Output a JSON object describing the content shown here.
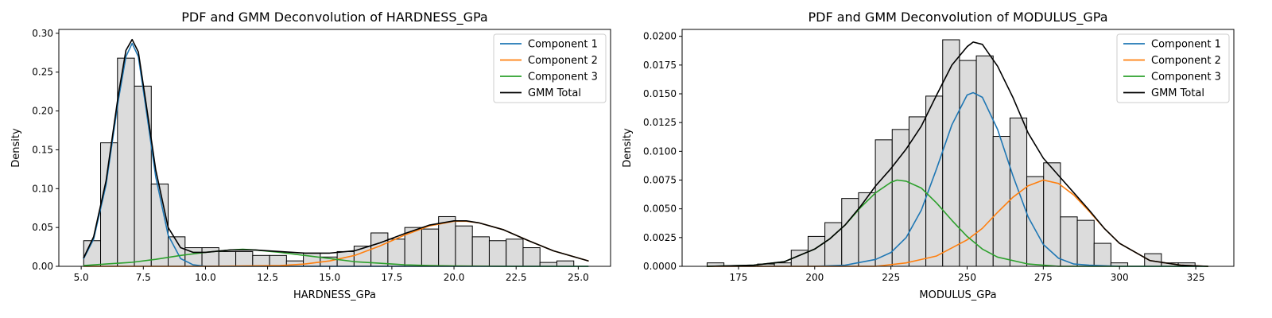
{
  "colors": {
    "component_1": "#1f77b4",
    "component_2": "#ff7f0e",
    "component_3": "#2ca02c",
    "gmm_total": "#000000",
    "hist_fill": "#dcdcdc",
    "hist_edge": "#000000"
  },
  "chart_data": [
    {
      "type": "histogram+line",
      "title": "PDF and GMM Deconvolution of HARDNESS_GPa",
      "xlabel": "HARDNESS_GPa",
      "ylabel": "Density",
      "xlim": [
        4.1,
        26.3
      ],
      "ylim": [
        0,
        0.305
      ],
      "xticks": [
        5.0,
        7.5,
        10.0,
        12.5,
        15.0,
        17.5,
        20.0,
        22.5,
        25.0
      ],
      "xtick_labels": [
        "5.0",
        "7.5",
        "10.0",
        "12.5",
        "15.0",
        "17.5",
        "20.0",
        "22.5",
        "25.0"
      ],
      "yticks": [
        0.0,
        0.05,
        0.1,
        0.15,
        0.2,
        0.25,
        0.3
      ],
      "ytick_labels": [
        "0.00",
        "0.05",
        "0.10",
        "0.15",
        "0.20",
        "0.25",
        "0.30"
      ],
      "legend_position": "top-right",
      "grid": false,
      "histogram": {
        "bin_start": 5.1,
        "bin_width": 0.68,
        "densities": [
          0.033,
          0.159,
          0.268,
          0.232,
          0.106,
          0.038,
          0.024,
          0.024,
          0.019,
          0.019,
          0.014,
          0.014,
          0.007,
          0.017,
          0.012,
          0.019,
          0.026,
          0.043,
          0.035,
          0.05,
          0.048,
          0.064,
          0.052,
          0.038,
          0.033,
          0.035,
          0.024,
          0.005,
          0.007
        ]
      },
      "series": [
        {
          "name": "Component 1",
          "color_key": "component_1",
          "x": [
            5.1,
            5.5,
            6.0,
            6.5,
            6.8,
            7.05,
            7.3,
            7.6,
            8.0,
            8.5,
            9.0,
            9.5,
            10.0,
            10.5,
            11.0,
            12.0,
            15.0,
            20.0,
            25.4
          ],
          "y": [
            0.01,
            0.035,
            0.105,
            0.215,
            0.27,
            0.287,
            0.27,
            0.205,
            0.115,
            0.04,
            0.01,
            0.002,
            0.0,
            0.0,
            0.0,
            0.0,
            0.0,
            0.0,
            0.0
          ]
        },
        {
          "name": "Component 2",
          "color_key": "component_2",
          "x": [
            5.1,
            10.0,
            13.0,
            14.0,
            15.0,
            16.0,
            17.0,
            18.0,
            19.0,
            20.0,
            20.5,
            21.0,
            22.0,
            23.0,
            24.0,
            25.4
          ],
          "y": [
            0.0,
            0.0,
            0.001,
            0.003,
            0.007,
            0.014,
            0.026,
            0.04,
            0.052,
            0.058,
            0.058,
            0.056,
            0.047,
            0.033,
            0.02,
            0.007
          ]
        },
        {
          "name": "Component 3",
          "color_key": "component_3",
          "x": [
            5.1,
            6.0,
            7.0,
            8.0,
            9.0,
            10.0,
            11.0,
            11.5,
            12.0,
            13.0,
            14.0,
            15.0,
            16.0,
            17.0,
            18.0,
            19.0,
            20.0,
            22.0,
            25.4
          ],
          "y": [
            0.001,
            0.003,
            0.005,
            0.009,
            0.014,
            0.018,
            0.021,
            0.022,
            0.021,
            0.018,
            0.014,
            0.01,
            0.006,
            0.004,
            0.002,
            0.001,
            0.0005,
            0.0,
            0.0
          ]
        },
        {
          "name": "GMM Total",
          "color_key": "gmm_total",
          "x": [
            5.1,
            5.5,
            6.0,
            6.5,
            6.8,
            7.05,
            7.3,
            7.6,
            8.0,
            8.5,
            9.0,
            9.5,
            10.0,
            11.0,
            12.0,
            13.0,
            14.0,
            15.0,
            16.0,
            17.0,
            18.0,
            19.0,
            20.0,
            20.5,
            21.0,
            22.0,
            23.0,
            24.0,
            25.4
          ],
          "y": [
            0.011,
            0.038,
            0.11,
            0.222,
            0.278,
            0.292,
            0.276,
            0.212,
            0.124,
            0.05,
            0.024,
            0.018,
            0.018,
            0.021,
            0.021,
            0.019,
            0.017,
            0.017,
            0.02,
            0.03,
            0.042,
            0.053,
            0.0585,
            0.0585,
            0.056,
            0.047,
            0.033,
            0.02,
            0.007
          ]
        }
      ]
    },
    {
      "type": "histogram+line",
      "title": "PDF and GMM Deconvolution of MODULUS_GPa",
      "xlabel": "MODULUS_GPa",
      "ylabel": "Density",
      "xlim": [
        156.5,
        337.5
      ],
      "ylim": [
        0,
        0.0206
      ],
      "xticks": [
        175,
        200,
        225,
        250,
        275,
        300,
        325
      ],
      "xtick_labels": [
        "175",
        "200",
        "225",
        "250",
        "275",
        "300",
        "325"
      ],
      "yticks": [
        0.0,
        0.0025,
        0.005,
        0.0075,
        0.01,
        0.0125,
        0.015,
        0.0175,
        0.02
      ],
      "ytick_labels": [
        "0.0000",
        "0.0025",
        "0.0050",
        "0.0075",
        "0.0100",
        "0.0125",
        "0.0150",
        "0.0175",
        "0.0200"
      ],
      "legend_position": "top-right",
      "grid": false,
      "histogram": {
        "bin_start": 164.7,
        "bin_width": 5.52,
        "densities": [
          0.0003,
          0.0,
          0.0,
          0.0002,
          0.0003,
          0.0014,
          0.0026,
          0.0038,
          0.0059,
          0.0064,
          0.011,
          0.0119,
          0.013,
          0.0148,
          0.0197,
          0.0179,
          0.0183,
          0.0113,
          0.0129,
          0.0078,
          0.009,
          0.0043,
          0.004,
          0.002,
          0.0003,
          0.0,
          0.0011,
          0.0003,
          0.0003
        ]
      },
      "series": [
        {
          "name": "Component 1",
          "color_key": "component_1",
          "x": [
            164.7,
            200,
            210,
            220,
            225,
            230,
            235,
            240,
            245,
            250,
            252,
            255,
            260,
            265,
            270,
            275,
            280,
            285,
            290,
            300,
            329
          ],
          "y": [
            0.0,
            0.0,
            0.0001,
            0.0006,
            0.0012,
            0.0025,
            0.0049,
            0.0085,
            0.0123,
            0.0149,
            0.0151,
            0.0147,
            0.0119,
            0.0079,
            0.0043,
            0.0019,
            0.0007,
            0.0002,
            0.0001,
            0.0,
            0.0
          ]
        },
        {
          "name": "Component 2",
          "color_key": "component_2",
          "x": [
            164.7,
            220,
            230,
            240,
            250,
            255,
            260,
            265,
            270,
            275,
            280,
            285,
            290,
            295,
            300,
            310,
            320,
            329
          ],
          "y": [
            0.0,
            0.0,
            0.0003,
            0.0009,
            0.0023,
            0.0033,
            0.0047,
            0.006,
            0.007,
            0.0075,
            0.0072,
            0.0062,
            0.0048,
            0.0033,
            0.002,
            0.0005,
            0.0001,
            0.0
          ]
        },
        {
          "name": "Component 3",
          "color_key": "component_3",
          "x": [
            164.7,
            180,
            190,
            200,
            205,
            210,
            215,
            220,
            225,
            227,
            230,
            235,
            240,
            245,
            250,
            255,
            260,
            270,
            280,
            329
          ],
          "y": [
            0.0,
            0.0001,
            0.0004,
            0.0015,
            0.0024,
            0.0036,
            0.0051,
            0.0064,
            0.0073,
            0.0075,
            0.0074,
            0.0068,
            0.0055,
            0.004,
            0.0026,
            0.0015,
            0.0008,
            0.0002,
            0.0,
            0.0
          ]
        },
        {
          "name": "GMM Total",
          "color_key": "gmm_total",
          "x": [
            164.7,
            180,
            190,
            200,
            205,
            210,
            215,
            220,
            225,
            230,
            235,
            240,
            245,
            250,
            252,
            255,
            260,
            265,
            270,
            275,
            280,
            285,
            290,
            295,
            300,
            310,
            320,
            329
          ],
          "y": [
            0.0,
            0.0001,
            0.0004,
            0.0015,
            0.0024,
            0.0036,
            0.0052,
            0.007,
            0.0085,
            0.0102,
            0.0122,
            0.0149,
            0.0175,
            0.0191,
            0.0195,
            0.0193,
            0.0174,
            0.0147,
            0.0116,
            0.0094,
            0.0079,
            0.0064,
            0.0049,
            0.0033,
            0.002,
            0.0005,
            0.0001,
            0.0
          ]
        }
      ]
    }
  ]
}
